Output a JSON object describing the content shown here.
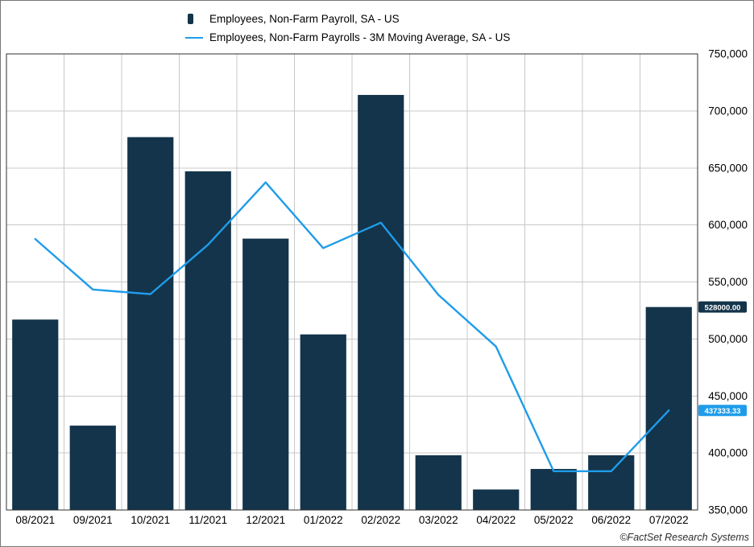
{
  "legend": {
    "items": [
      {
        "label": "Employees, Non-Farm Payroll, SA - US"
      },
      {
        "label": "Employees, Non-Farm Payrolls - 3M Moving Average, SA - US"
      }
    ]
  },
  "footer": {
    "credit": "©FactSet Research Systems"
  },
  "colors": {
    "bar": "#13344a",
    "line": "#1f9ce9",
    "grid": "#c8c8c8",
    "border": "#2f2f2f",
    "text": "#000000"
  },
  "chart_data": {
    "type": "bar",
    "subtype": "bar+line combo",
    "categories": [
      "08/2021",
      "09/2021",
      "10/2021",
      "11/2021",
      "12/2021",
      "01/2022",
      "02/2022",
      "03/2022",
      "04/2022",
      "05/2022",
      "06/2022",
      "07/2022"
    ],
    "series": [
      {
        "name": "Employees, Non-Farm Payroll, SA - US",
        "type": "bar",
        "color": "#13344a",
        "values": [
          517000,
          424000,
          677000,
          647000,
          588000,
          504000,
          714000,
          398000,
          368000,
          386000,
          398000,
          528000
        ]
      },
      {
        "name": "Employees, Non-Farm Payrolls - 3M Moving Average, SA - US",
        "type": "line",
        "color": "#1f9ce9",
        "values": [
          587666.67,
          543333.33,
          539333.33,
          582666.67,
          637333.33,
          579666.67,
          602000,
          538666.67,
          493333.33,
          384000,
          384000,
          437333.33
        ]
      }
    ],
    "ylim": [
      350000,
      750000
    ],
    "ytick_step": 50000,
    "ytick_labels": [
      "750,000",
      "700,000",
      "650,000",
      "600,000",
      "550,000",
      "500,000",
      "450,000",
      "400,000",
      "350,000"
    ],
    "grid": true,
    "legend_position": "top",
    "yaxis_side": "right",
    "last_value_labels": [
      {
        "text": "528000.00",
        "value": 528000,
        "bg": "#13344a",
        "fg": "#ffffff"
      },
      {
        "text": "437333.33",
        "value": 437333.33,
        "bg": "#1f9ce9",
        "fg": "#ffffff"
      }
    ]
  }
}
